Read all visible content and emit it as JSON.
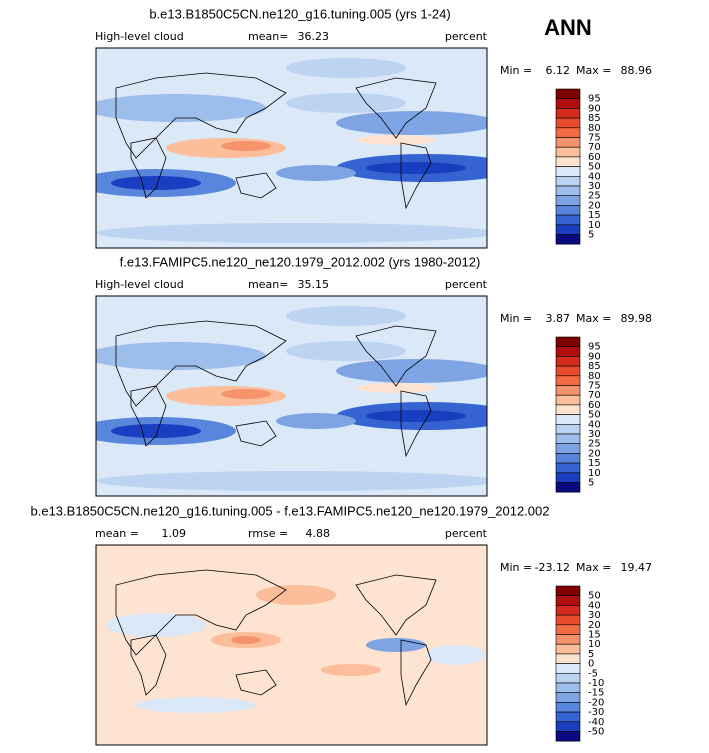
{
  "season": "ANN",
  "panels": [
    {
      "title": "b.e13.B1850C5CN.ne120_g16.tuning.005 (yrs 1-24)",
      "variable": "High-level cloud",
      "mean_label": "mean=",
      "mean": 36.23,
      "units": "percent",
      "min_label": "Min =",
      "min": 6.12,
      "max_label": "Max =",
      "max": 88.96,
      "colorbar": {
        "levels": [
          95,
          90,
          85,
          80,
          75,
          70,
          60,
          50,
          40,
          30,
          25,
          20,
          15,
          10,
          5
        ],
        "colors": [
          "#800000",
          "#b00f0f",
          "#d42a1e",
          "#ea4a2e",
          "#f26b45",
          "#f7936a",
          "#fbbd9a",
          "#fde3d0",
          "#dbe8f8",
          "#bcd3f2",
          "#9dbdec",
          "#7ea4e4",
          "#5886dc",
          "#3563d2",
          "#1a3ec0",
          "#0a0a80"
        ]
      }
    },
    {
      "title": "f.e13.FAMIPC5.ne120_ne120.1979_2012.002 (yrs 1980-2012)",
      "variable": "High-level cloud",
      "mean_label": "mean=",
      "mean": 35.15,
      "units": "percent",
      "min_label": "Min =",
      "min": 3.87,
      "max_label": "Max =",
      "max": 89.98,
      "colorbar": {
        "levels": [
          95,
          90,
          85,
          80,
          75,
          70,
          60,
          50,
          40,
          30,
          25,
          20,
          15,
          10,
          5
        ],
        "colors": [
          "#800000",
          "#b00f0f",
          "#d42a1e",
          "#ea4a2e",
          "#f26b45",
          "#f7936a",
          "#fbbd9a",
          "#fde3d0",
          "#dbe8f8",
          "#bcd3f2",
          "#9dbdec",
          "#7ea4e4",
          "#5886dc",
          "#3563d2",
          "#1a3ec0",
          "#0a0a80"
        ]
      }
    },
    {
      "title": "b.e13.B1850C5CN.ne120_g16.tuning.005 - f.e13.FAMIPC5.ne120_ne120.1979_2012.002",
      "mean_label": "mean =",
      "mean": 1.09,
      "rmse_label": "rmse =",
      "rmse": 4.88,
      "units": "percent",
      "min_label": "Min =",
      "min": -23.12,
      "max_label": "Max =",
      "max": 19.47,
      "colorbar": {
        "levels": [
          50,
          40,
          30,
          20,
          15,
          10,
          5,
          0,
          -5,
          -10,
          -15,
          -20,
          -30,
          -40,
          -50
        ],
        "colors": [
          "#800000",
          "#b00f0f",
          "#d42a1e",
          "#ea4a2e",
          "#f26b45",
          "#f7936a",
          "#fbbd9a",
          "#fde3d0",
          "#dbe8f8",
          "#bcd3f2",
          "#9dbdec",
          "#7ea4e4",
          "#5886dc",
          "#3563d2",
          "#1a3ec0",
          "#0a0a80"
        ]
      }
    }
  ]
}
